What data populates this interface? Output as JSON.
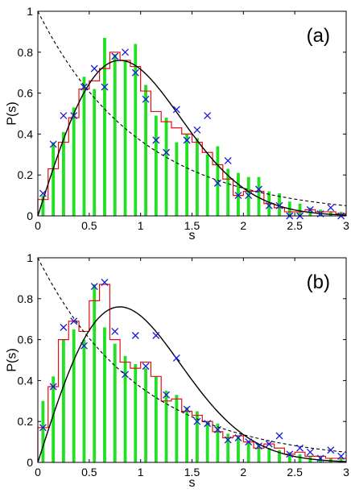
{
  "chart_data": [
    {
      "panel_label": "(a)",
      "type": "bar",
      "xlabel": "s",
      "ylabel": "P(s)",
      "xlim": [
        0,
        3
      ],
      "ylim": [
        0,
        1
      ],
      "xticks": [
        0,
        0.5,
        1,
        1.5,
        2,
        2.5,
        3
      ],
      "yticks": [
        0,
        0.2,
        0.4,
        0.6,
        0.8,
        1
      ],
      "xtick_labels": [
        "0",
        "0.5",
        "1",
        "1.5",
        "2",
        "2.5",
        "3"
      ],
      "ytick_labels": [
        "0",
        "0.2",
        "0.4",
        "0.6",
        "0.8",
        "1"
      ],
      "grid": false,
      "bars_green": {
        "width": 0.03,
        "x": [
          0.05,
          0.15,
          0.25,
          0.35,
          0.45,
          0.55,
          0.65,
          0.75,
          0.85,
          0.95,
          1.05,
          1.15,
          1.25,
          1.35,
          1.45,
          1.55,
          1.65,
          1.75,
          1.85,
          1.95,
          2.05,
          2.15,
          2.25,
          2.35,
          2.45,
          2.55,
          2.65,
          2.75,
          2.85,
          2.95
        ],
        "y": [
          0.1,
          0.36,
          0.41,
          0.53,
          0.68,
          0.62,
          0.87,
          0.79,
          0.76,
          0.84,
          0.64,
          0.49,
          0.48,
          0.36,
          0.4,
          0.38,
          0.3,
          0.34,
          0.23,
          0.21,
          0.19,
          0.19,
          0.12,
          0.11,
          0.07,
          0.06,
          0.04,
          0.03,
          0.02,
          0.02
        ]
      },
      "red_histogram": {
        "edges": [
          0,
          0.1,
          0.2,
          0.3,
          0.4,
          0.5,
          0.6,
          0.7,
          0.8,
          0.9,
          1.0,
          1.1,
          1.2,
          1.3,
          1.4,
          1.5,
          1.6,
          1.7,
          1.8,
          1.9,
          2.0,
          2.1,
          2.2,
          2.3,
          2.4,
          2.5,
          2.6,
          2.7,
          2.8,
          2.9,
          3.0
        ],
        "y": [
          0.08,
          0.23,
          0.36,
          0.48,
          0.62,
          0.66,
          0.72,
          0.8,
          0.76,
          0.73,
          0.61,
          0.51,
          0.46,
          0.43,
          0.4,
          0.36,
          0.31,
          0.25,
          0.18,
          0.1,
          0.12,
          0.12,
          0.06,
          0.04,
          0.02,
          0.02,
          0.03,
          0.02,
          0.02,
          0.01
        ]
      },
      "blue_x": {
        "x": [
          0.05,
          0.15,
          0.25,
          0.35,
          0.45,
          0.55,
          0.65,
          0.75,
          0.85,
          0.95,
          1.05,
          1.15,
          1.25,
          1.35,
          1.45,
          1.55,
          1.65,
          1.75,
          1.85,
          1.95,
          2.05,
          2.15,
          2.25,
          2.35,
          2.45,
          2.55,
          2.65,
          2.75,
          2.85,
          2.95
        ],
        "y": [
          0.11,
          0.35,
          0.49,
          0.49,
          0.63,
          0.72,
          0.63,
          0.78,
          0.8,
          0.7,
          0.57,
          0.37,
          0.31,
          0.52,
          0.37,
          0.42,
          0.49,
          0.16,
          0.27,
          0.1,
          0.1,
          0.13,
          0.05,
          0.05,
          0.0,
          0.0,
          0.03,
          0.01,
          0.04,
          0.0
        ]
      },
      "black_solid": "wigner",
      "black_dashed": "poisson"
    },
    {
      "panel_label": "(b)",
      "type": "bar",
      "xlabel": "s",
      "ylabel": "P(s)",
      "xlim": [
        0,
        3
      ],
      "ylim": [
        0,
        1
      ],
      "xticks": [
        0,
        0.5,
        1,
        1.5,
        2,
        2.5,
        3
      ],
      "yticks": [
        0,
        0.2,
        0.4,
        0.6,
        0.8,
        1
      ],
      "xtick_labels": [
        "0",
        "0.5",
        "1",
        "1.5",
        "2",
        "2.5",
        "3"
      ],
      "ytick_labels": [
        "0",
        "0.2",
        "0.4",
        "0.6",
        "0.8",
        "1"
      ],
      "grid": false,
      "bars_green": {
        "width": 0.03,
        "x": [
          0.05,
          0.15,
          0.25,
          0.35,
          0.45,
          0.55,
          0.65,
          0.75,
          0.85,
          0.95,
          1.05,
          1.15,
          1.25,
          1.35,
          1.45,
          1.55,
          1.65,
          1.75,
          1.85,
          1.95,
          2.05,
          2.15,
          2.25,
          2.35,
          2.45,
          2.55,
          2.65,
          2.75,
          2.85,
          2.95
        ],
        "y": [
          0.3,
          0.42,
          0.6,
          0.65,
          0.6,
          0.87,
          0.66,
          0.58,
          0.52,
          0.48,
          0.46,
          0.42,
          0.35,
          0.33,
          0.27,
          0.25,
          0.2,
          0.19,
          0.14,
          0.13,
          0.1,
          0.09,
          0.07,
          0.06,
          0.05,
          0.04,
          0.03,
          0.03,
          0.02,
          0.02
        ]
      },
      "red_histogram": {
        "edges": [
          0,
          0.1,
          0.2,
          0.3,
          0.4,
          0.5,
          0.6,
          0.7,
          0.8,
          0.9,
          1.0,
          1.1,
          1.2,
          1.3,
          1.4,
          1.5,
          1.6,
          1.7,
          1.8,
          1.9,
          2.0,
          2.1,
          2.2,
          2.3,
          2.4,
          2.5,
          2.6,
          2.7,
          2.8,
          2.9,
          3.0
        ],
        "y": [
          0.17,
          0.37,
          0.6,
          0.69,
          0.64,
          0.79,
          0.87,
          0.6,
          0.49,
          0.46,
          0.49,
          0.42,
          0.3,
          0.31,
          0.25,
          0.23,
          0.2,
          0.15,
          0.12,
          0.13,
          0.1,
          0.07,
          0.09,
          0.07,
          0.04,
          0.05,
          0.03,
          0.03,
          0.02,
          0.02
        ]
      },
      "blue_x": {
        "x": [
          0.05,
          0.15,
          0.25,
          0.35,
          0.45,
          0.55,
          0.65,
          0.75,
          0.85,
          0.95,
          1.05,
          1.15,
          1.25,
          1.35,
          1.45,
          1.55,
          1.65,
          1.75,
          1.85,
          1.95,
          2.05,
          2.15,
          2.25,
          2.35,
          2.45,
          2.55,
          2.65,
          2.75,
          2.85,
          2.95
        ],
        "y": [
          0.17,
          0.37,
          0.66,
          0.69,
          0.57,
          0.86,
          0.88,
          0.64,
          0.43,
          0.62,
          0.47,
          0.62,
          0.33,
          0.51,
          0.26,
          0.2,
          0.19,
          0.16,
          0.11,
          0.12,
          0.1,
          0.08,
          0.09,
          0.13,
          0.04,
          0.07,
          0.05,
          0.02,
          0.06,
          0.03
        ]
      },
      "black_solid": "wigner",
      "black_dashed": "poisson"
    }
  ],
  "colors": {
    "green_bars": "#22e022",
    "red_histogram": "#e01010",
    "blue_x": "#1a1adb",
    "black_curve": "#000000"
  }
}
